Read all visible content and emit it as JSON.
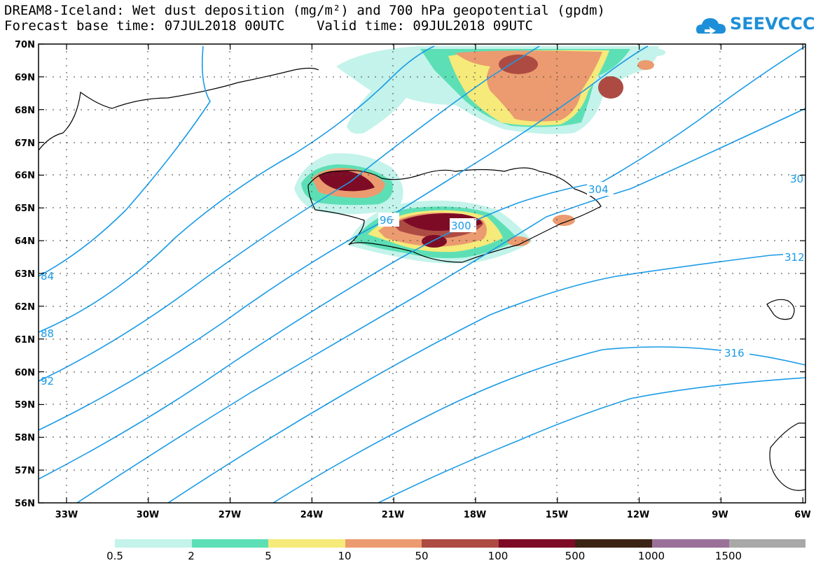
{
  "header": {
    "line1": "DREAM8-Iceland: Wet dust deposition (mg/m²) and 700 hPa geopotential (gpdm)",
    "line2": "Forecast base time: 07JUL2018 00UTC    Valid time: 09JUL2018 09UTC"
  },
  "logo": {
    "text": "SEEVCCC",
    "color": "#1d8fd8"
  },
  "axes": {
    "lat_labels": [
      "70N",
      "69N",
      "68N",
      "67N",
      "66N",
      "65N",
      "64N",
      "63N",
      "62N",
      "61N",
      "60N",
      "59N",
      "58N",
      "57N",
      "56N"
    ],
    "lon_labels": [
      "33W",
      "30W",
      "27W",
      "24W",
      "21W",
      "18W",
      "15W",
      "12W",
      "9W",
      "6W"
    ]
  },
  "contours": {
    "color": "#1a9be6",
    "labels": [
      "84",
      "88",
      "92",
      "96",
      "300",
      "304",
      "30",
      "312",
      "316"
    ]
  },
  "colorbar": {
    "colors": [
      "#c3f3ea",
      "#5ddfb6",
      "#f5ea7a",
      "#eb9b6f",
      "#ad4b43",
      "#7e0b26",
      "#3c2415",
      "#9a7099",
      "#a8a8a8"
    ],
    "labels": [
      "0.5",
      "2",
      "5",
      "10",
      "50",
      "100",
      "500",
      "1000",
      "1500"
    ]
  }
}
